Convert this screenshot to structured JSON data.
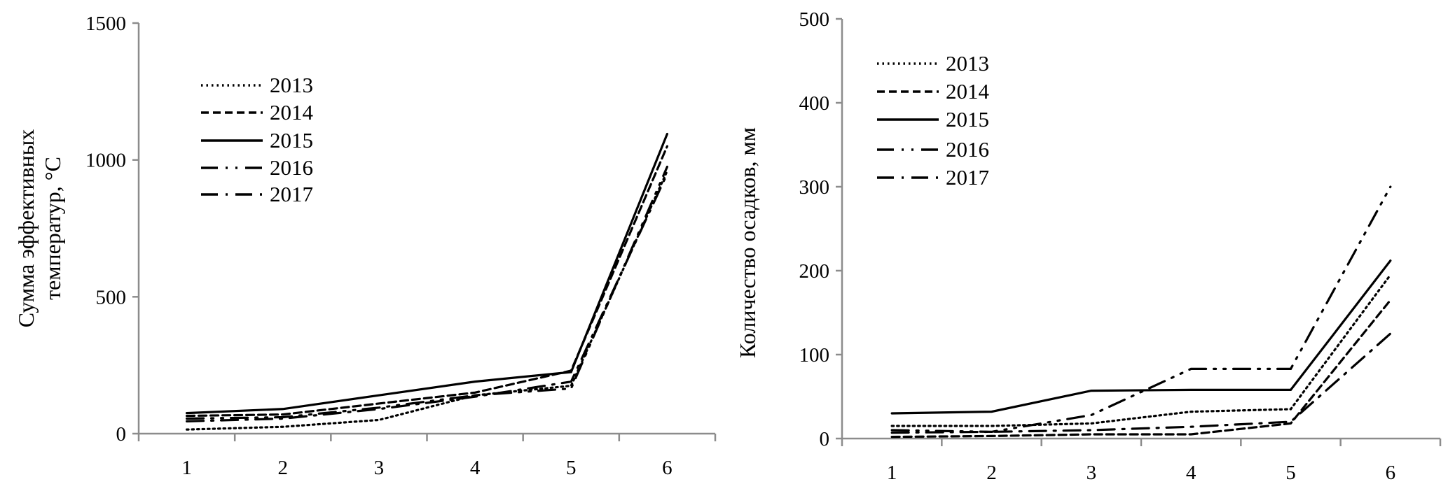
{
  "chart_data": [
    {
      "type": "line",
      "ylabel": [
        "Сумма эффективных",
        "температур, °С"
      ],
      "xlabel": "",
      "categories": [
        "1",
        "2",
        "3",
        "4",
        "5",
        "6"
      ],
      "ylim": [
        0,
        1500
      ],
      "yticks": [
        0,
        500,
        1000,
        1500
      ],
      "grid": false,
      "legend_position": "top-left",
      "series": [
        {
          "name": "2013",
          "style": "dotted",
          "values": [
            15,
            25,
            50,
            140,
            175,
            960
          ]
        },
        {
          "name": "2014",
          "style": "dashed",
          "values": [
            65,
            70,
            110,
            150,
            230,
            1050
          ]
        },
        {
          "name": "2015",
          "style": "solid",
          "values": [
            75,
            90,
            140,
            190,
            225,
            1095
          ]
        },
        {
          "name": "2016",
          "style": "dash-dot-dot",
          "values": [
            55,
            60,
            95,
            140,
            165,
            975
          ]
        },
        {
          "name": "2017",
          "style": "dash-dot",
          "values": [
            45,
            55,
            90,
            135,
            190,
            950
          ]
        }
      ]
    },
    {
      "type": "line",
      "ylabel": [
        "Количество осадков, мм"
      ],
      "xlabel": "",
      "categories": [
        "1",
        "2",
        "3",
        "4",
        "5",
        "6"
      ],
      "ylim": [
        0,
        500
      ],
      "yticks": [
        0,
        100,
        200,
        300,
        400,
        500
      ],
      "grid": false,
      "legend_position": "top-left",
      "series": [
        {
          "name": "2013",
          "style": "dotted",
          "values": [
            15,
            15,
            18,
            32,
            35,
            195
          ]
        },
        {
          "name": "2014",
          "style": "dashed",
          "values": [
            2,
            3,
            5,
            5,
            18,
            165
          ]
        },
        {
          "name": "2015",
          "style": "solid",
          "values": [
            30,
            32,
            57,
            58,
            58,
            212
          ]
        },
        {
          "name": "2016",
          "style": "dash-dot-dot",
          "values": [
            10,
            8,
            28,
            83,
            83,
            300
          ]
        },
        {
          "name": "2017",
          "style": "dash-dot",
          "values": [
            7,
            8,
            10,
            14,
            20,
            125
          ]
        }
      ]
    }
  ],
  "colors": {
    "line": "#000000",
    "axis": "#8c8c8c"
  }
}
